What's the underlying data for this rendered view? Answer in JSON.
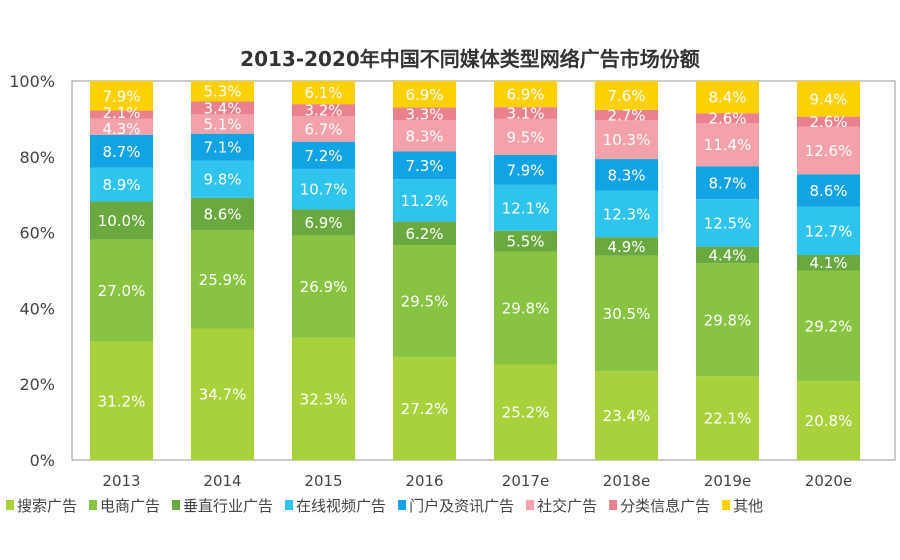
{
  "chart_data": {
    "type": "bar",
    "stacked": true,
    "title": "2013-2020年中国不同媒体类型网络广告市场份额",
    "xlabel": "",
    "ylabel": "",
    "ylim": [
      0,
      100
    ],
    "yticks": [
      "0%",
      "20%",
      "40%",
      "60%",
      "80%",
      "100%"
    ],
    "categories": [
      "2013",
      "2014",
      "2015",
      "2016",
      "2017e",
      "2018e",
      "2019e",
      "2020e"
    ],
    "legend_position": "bottom",
    "grid": false,
    "series": [
      {
        "name": "搜索广告",
        "color": "#a8d13c",
        "values": [
          31.2,
          34.7,
          32.3,
          27.2,
          25.2,
          23.4,
          22.1,
          20.8
        ]
      },
      {
        "name": "电商广告",
        "color": "#88c441",
        "values": [
          27.0,
          25.9,
          26.9,
          29.5,
          29.8,
          30.5,
          29.8,
          29.2
        ]
      },
      {
        "name": "垂直行业广告",
        "color": "#6aa840",
        "values": [
          10.0,
          8.6,
          6.9,
          6.2,
          5.5,
          4.9,
          4.4,
          4.1
        ]
      },
      {
        "name": "在线视频广告",
        "color": "#2ec4ee",
        "values": [
          8.9,
          9.8,
          10.7,
          11.2,
          12.1,
          12.3,
          12.5,
          12.7
        ]
      },
      {
        "name": "门户及资讯广告",
        "color": "#11a3e4",
        "values": [
          8.7,
          7.1,
          7.2,
          7.3,
          7.9,
          8.3,
          8.7,
          8.6
        ]
      },
      {
        "name": "社交广告",
        "color": "#f3a1ab",
        "values": [
          4.3,
          5.1,
          6.7,
          8.3,
          9.5,
          10.3,
          11.4,
          12.6
        ]
      },
      {
        "name": "分类信息广告",
        "color": "#e9818f",
        "values": [
          2.1,
          3.4,
          3.2,
          3.3,
          3.1,
          2.7,
          2.6,
          2.6
        ]
      },
      {
        "name": "其他",
        "color": "#fdd000",
        "values": [
          7.9,
          5.3,
          6.1,
          6.9,
          6.9,
          7.6,
          8.4,
          9.4
        ]
      }
    ]
  }
}
